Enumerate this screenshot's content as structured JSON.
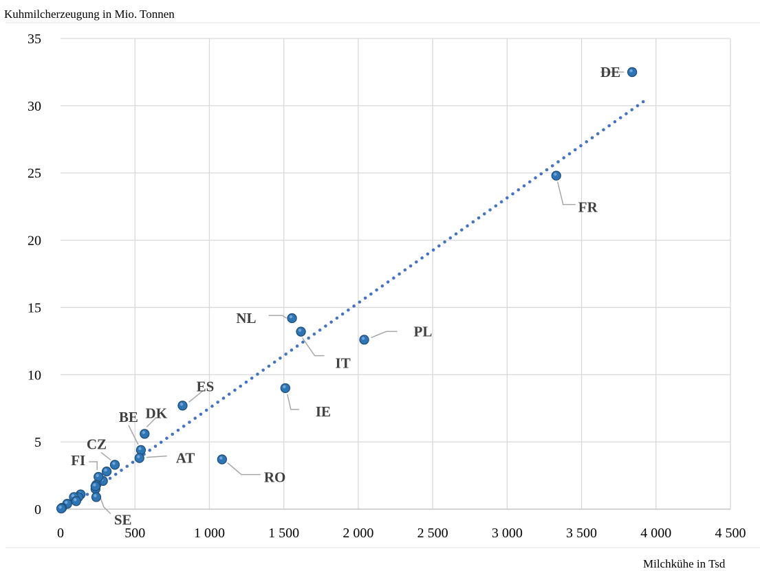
{
  "chart_data": {
    "type": "scatter",
    "title": "",
    "ylabel": "Kuhmilcherzeugung in Mio. Tonnen",
    "xlabel": "Milchkühe in Tsd",
    "xlim": [
      0,
      4500
    ],
    "ylim": [
      0,
      35
    ],
    "x_ticks": [
      "0",
      "500",
      "1 000",
      "1 500",
      "2 000",
      "2 500",
      "3 000",
      "3 500",
      "4 000",
      "4 500"
    ],
    "y_ticks": [
      "0",
      "5",
      "10",
      "15",
      "20",
      "25",
      "30",
      "35"
    ],
    "grid": true,
    "marker_color": "#2E75B6",
    "trendline": {
      "type": "linear",
      "x": [
        180,
        3940
      ],
      "y": [
        1.1,
        30.5
      ],
      "color": "#4472C4"
    },
    "points": [
      {
        "x": 3840,
        "y": 32.5,
        "label": "DE"
      },
      {
        "x": 3330,
        "y": 24.8,
        "label": "FR"
      },
      {
        "x": 1555,
        "y": 14.2,
        "label": "NL"
      },
      {
        "x": 1615,
        "y": 13.2,
        "label": "IT"
      },
      {
        "x": 2040,
        "y": 12.6,
        "label": "PL"
      },
      {
        "x": 1510,
        "y": 9.0,
        "label": "IE"
      },
      {
        "x": 820,
        "y": 7.7,
        "label": "ES"
      },
      {
        "x": 565,
        "y": 5.6,
        "label": "DK"
      },
      {
        "x": 540,
        "y": 4.4,
        "label": "BE"
      },
      {
        "x": 530,
        "y": 3.8,
        "label": "AT"
      },
      {
        "x": 1085,
        "y": 3.7,
        "label": "RO"
      },
      {
        "x": 365,
        "y": 3.3,
        "label": "CZ"
      },
      {
        "x": 310,
        "y": 2.8,
        "label": ""
      },
      {
        "x": 285,
        "y": 2.1,
        "label": ""
      },
      {
        "x": 255,
        "y": 2.4,
        "label": "FI"
      },
      {
        "x": 240,
        "y": 1.8,
        "label": ""
      },
      {
        "x": 235,
        "y": 1.5,
        "label": ""
      },
      {
        "x": 240,
        "y": 0.9,
        "label": ""
      },
      {
        "x": 135,
        "y": 1.1,
        "label": ""
      },
      {
        "x": 120,
        "y": 0.9,
        "label": ""
      },
      {
        "x": 90,
        "y": 0.9,
        "label": ""
      },
      {
        "x": 105,
        "y": 0.6,
        "label": ""
      },
      {
        "x": 45,
        "y": 0.4,
        "label": ""
      },
      {
        "x": 10,
        "y": 0.1,
        "label": ""
      },
      {
        "x": 5,
        "y": 0.05,
        "label": ""
      },
      {
        "x": 235,
        "y": 1.7,
        "label": "SE"
      }
    ]
  }
}
